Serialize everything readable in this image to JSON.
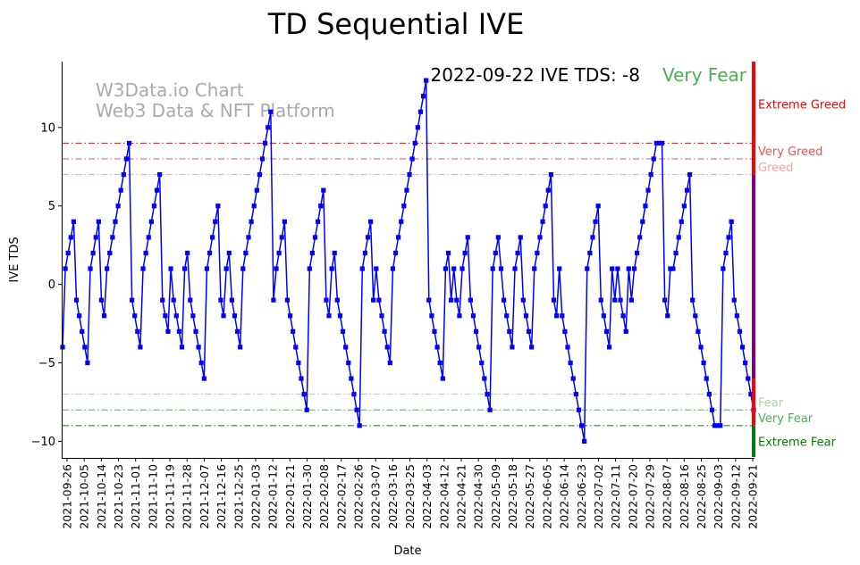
{
  "chart_data": {
    "type": "line",
    "title": "TD Sequential IVE",
    "xlabel": "Date",
    "ylabel": "IVE TDS",
    "ylim": [
      -11.0,
      14.2
    ],
    "yticks": [
      -10,
      -5,
      0,
      5,
      10
    ],
    "watermark": [
      "W3Data.io Chart",
      "Web3 Data & NFT Platform"
    ],
    "annotation": {
      "date": "2022-09-22",
      "label": "IVE TDS: -8",
      "sentiment": "Very Fear",
      "sentiment_color": "#4caf50"
    },
    "xtick_labels": [
      "2021-09-26",
      "2021-10-05",
      "2021-10-14",
      "2021-10-23",
      "2021-11-01",
      "2021-11-10",
      "2021-11-19",
      "2021-11-28",
      "2021-12-07",
      "2021-12-16",
      "2021-12-25",
      "2022-01-03",
      "2022-01-12",
      "2022-01-21",
      "2022-01-30",
      "2022-02-08",
      "2022-02-17",
      "2022-02-26",
      "2022-03-07",
      "2022-03-16",
      "2022-03-25",
      "2022-04-03",
      "2022-04-12",
      "2022-04-21",
      "2022-04-30",
      "2022-05-09",
      "2022-05-18",
      "2022-05-27",
      "2022-06-05",
      "2022-06-14",
      "2022-06-23",
      "2022-07-02",
      "2022-07-11",
      "2022-07-20",
      "2022-07-29",
      "2022-08-07",
      "2022-08-16",
      "2022-08-25",
      "2022-09-03",
      "2022-09-12",
      "2022-09-21"
    ],
    "threshold_lines": [
      {
        "value": 9,
        "label": "Extreme Greed",
        "color": "#ff0000"
      },
      {
        "value": 8,
        "label": "Very Greed",
        "color": "#f05050"
      },
      {
        "value": 7,
        "label": "Greed",
        "color": "#ff9f9f"
      },
      {
        "value": -7,
        "label": "Fear",
        "color": "#a3d9a3"
      },
      {
        "value": -8,
        "label": "Very Fear",
        "color": "#4caf50"
      },
      {
        "value": -9,
        "label": "Extreme Fear",
        "color": "#008000"
      }
    ],
    "threshold_label_values": {
      "Extreme Greed": 11.5,
      "Very Greed": 8.5,
      "Greed": 7.5,
      "Fear": -7.5,
      "Very Fear": -8.5,
      "Extreme Fear": -10.0
    },
    "side_bar": [
      {
        "from": 7,
        "to": 14.2,
        "color": "#ff0000"
      },
      {
        "from": -6,
        "to": 7,
        "color": "#800080"
      },
      {
        "from": -9,
        "to": -6,
        "color": "#ff0000"
      },
      {
        "from": -11.0,
        "to": -9,
        "color": "#008000"
      }
    ],
    "series": [
      {
        "name": "IVE TDS",
        "color": "#0000ff",
        "values": [
          -4,
          1,
          2,
          3,
          4,
          -1,
          -2,
          -3,
          -4,
          -5,
          1,
          2,
          3,
          4,
          -1,
          -2,
          1,
          2,
          3,
          4,
          5,
          6,
          7,
          8,
          9,
          -1,
          -2,
          -3,
          -4,
          1,
          2,
          3,
          4,
          5,
          6,
          7,
          -1,
          -2,
          -3,
          1,
          -1,
          -2,
          -3,
          -4,
          1,
          2,
          -1,
          -2,
          -3,
          -4,
          -5,
          -6,
          1,
          2,
          3,
          4,
          5,
          -1,
          -2,
          1,
          2,
          -1,
          -2,
          -3,
          -4,
          1,
          2,
          3,
          4,
          5,
          6,
          7,
          8,
          9,
          10,
          11,
          -1,
          1,
          2,
          3,
          4,
          -1,
          -2,
          -3,
          -4,
          -5,
          -6,
          -7,
          -8,
          1,
          2,
          3,
          4,
          5,
          6,
          -1,
          -2,
          1,
          2,
          -1,
          -2,
          -3,
          -4,
          -5,
          -6,
          -7,
          -8,
          -9,
          1,
          2,
          3,
          4,
          -1,
          1,
          -1,
          -2,
          -3,
          -4,
          -5,
          1,
          2,
          3,
          4,
          5,
          6,
          7,
          8,
          9,
          10,
          11,
          12,
          13,
          -1,
          -2,
          -3,
          -4,
          -5,
          -6,
          1,
          2,
          -1,
          1,
          -1,
          -2,
          1,
          2,
          3,
          -1,
          -2,
          -3,
          -4,
          -5,
          -6,
          -7,
          -8,
          1,
          2,
          3,
          1,
          -1,
          -2,
          -3,
          -4,
          1,
          2,
          3,
          -1,
          -2,
          -3,
          -4,
          1,
          2,
          3,
          4,
          5,
          6,
          7,
          -1,
          -2,
          1,
          -2,
          -3,
          -4,
          -5,
          -6,
          -7,
          -8,
          -9,
          -10,
          1,
          2,
          3,
          4,
          5,
          -1,
          -2,
          -3,
          -4,
          1,
          -1,
          1,
          -1,
          -2,
          -3,
          1,
          -1,
          1,
          2,
          3,
          4,
          5,
          6,
          7,
          8,
          9,
          9,
          9,
          -1,
          -2,
          1,
          1,
          2,
          3,
          4,
          5,
          6,
          7,
          -1,
          -2,
          -3,
          -4,
          -5,
          -6,
          -7,
          -8,
          -9,
          -9,
          -9,
          1,
          2,
          3,
          4,
          -1,
          -2,
          -3,
          -4,
          -5,
          -6,
          -7,
          -8
        ]
      }
    ]
  }
}
